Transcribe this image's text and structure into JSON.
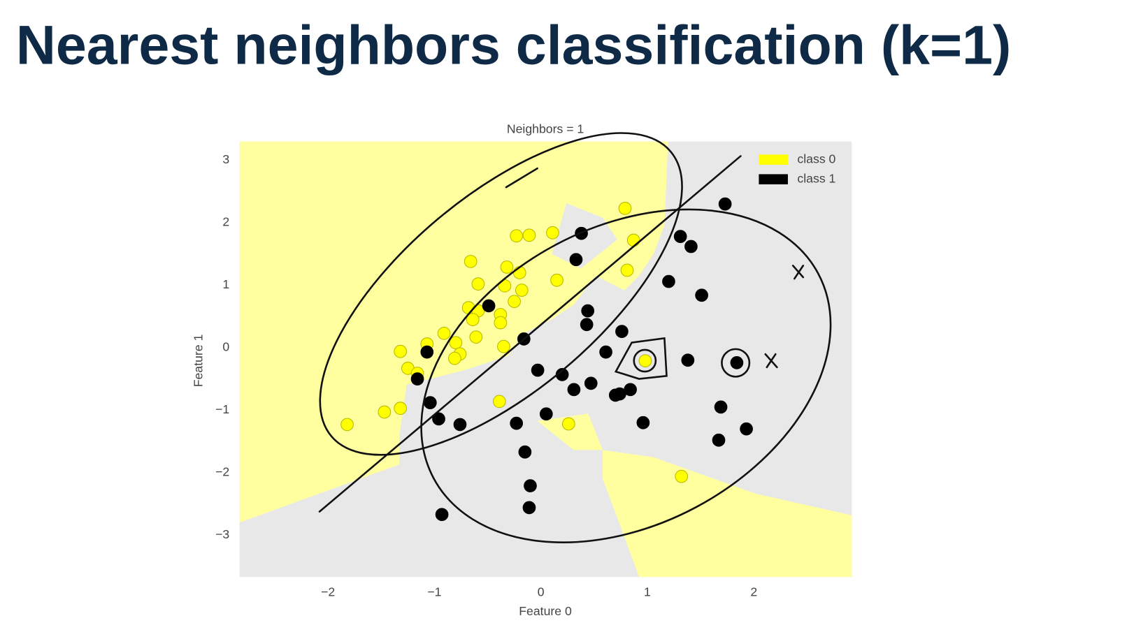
{
  "slide": {
    "title": "Nearest neighbors classification  (k=1)"
  },
  "chart_data": {
    "type": "scatter",
    "title": "Neighbors = 1",
    "x_label": "Feature 0",
    "y_label": "Feature 1",
    "xlim": [
      -2.83,
      2.92
    ],
    "ylim": [
      -3.67,
      3.3
    ],
    "xticks": [
      {
        "value": -2,
        "label": "−2"
      },
      {
        "value": -1,
        "label": "−1"
      },
      0,
      1,
      2
    ],
    "yticks": [
      {
        "value": -3,
        "label": "−3"
      },
      {
        "value": -2,
        "label": "−2"
      },
      {
        "value": -1,
        "label": "−1"
      },
      0,
      1,
      2,
      3
    ],
    "legend": "upper right",
    "series": [
      {
        "name": "class 0",
        "color": "#ffff00",
        "x": [
          0.79,
          -0.23,
          -0.11,
          0.11,
          0.87,
          -0.66,
          -0.32,
          -0.2,
          -0.59,
          0.15,
          0.81,
          -0.34,
          -0.18,
          -0.25,
          -0.68,
          -0.59,
          -0.38,
          -0.64,
          -0.38,
          -0.91,
          -0.61,
          -1.07,
          -0.8,
          -0.35,
          -1.32,
          -0.76,
          -0.81,
          -1.25,
          -1.16,
          0.98,
          -0.39,
          -1.32,
          -1.47,
          -1.82,
          0.26,
          1.32
        ],
        "values": [
          2.23,
          1.79,
          1.8,
          1.84,
          1.72,
          1.38,
          1.29,
          1.2,
          1.02,
          1.08,
          1.24,
          0.99,
          0.92,
          0.74,
          0.64,
          0.59,
          0.53,
          0.45,
          0.4,
          0.23,
          0.17,
          0.06,
          0.08,
          0.02,
          -0.06,
          -0.1,
          -0.17,
          -0.33,
          -0.41,
          -0.21,
          -0.86,
          -0.97,
          -1.03,
          -1.23,
          -1.22,
          -2.06
        ]
      },
      {
        "name": "class 1",
        "color": "#000000",
        "x": [
          1.73,
          0.38,
          1.31,
          1.41,
          0.33,
          1.2,
          1.51,
          -0.49,
          0.44,
          0.43,
          0.76,
          -0.16,
          0.61,
          -1.07,
          1.38,
          1.84,
          -0.03,
          -1.16,
          0.2,
          0.47,
          0.31,
          0.84,
          0.7,
          0.74,
          -1.04,
          1.69,
          0.05,
          -0.96,
          -0.23,
          -0.76,
          0.96,
          1.93,
          1.67,
          -0.15,
          -0.1,
          -0.11,
          -0.93
        ],
        "values": [
          2.3,
          1.83,
          1.78,
          1.62,
          1.41,
          1.06,
          0.84,
          0.67,
          0.59,
          0.37,
          0.26,
          0.14,
          -0.07,
          -0.07,
          -0.2,
          -0.24,
          -0.36,
          -0.5,
          -0.43,
          -0.57,
          -0.67,
          -0.67,
          -0.76,
          -0.74,
          -0.88,
          -0.95,
          -1.06,
          -1.14,
          -1.21,
          -1.23,
          -1.2,
          -1.3,
          -1.48,
          -1.67,
          -2.21,
          -2.56,
          -2.67
        ]
      }
    ]
  }
}
